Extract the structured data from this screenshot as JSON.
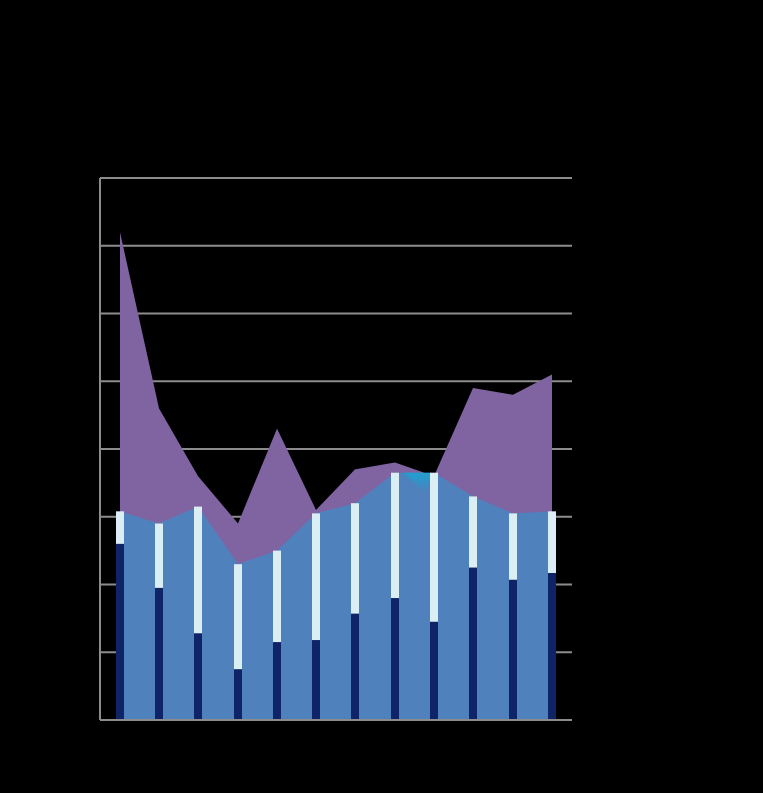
{
  "chart_data": {
    "type": "area",
    "title": "",
    "xlabel": "",
    "ylabel": "",
    "grid": true,
    "ylim": [
      0,
      8
    ],
    "x": [
      1,
      2,
      3,
      4,
      5,
      6,
      7,
      8,
      9,
      10,
      11,
      12
    ],
    "series": [
      {
        "type": "area",
        "values": [
          7.2,
          4.6,
          3.6,
          2.9,
          4.3,
          3.1,
          3.7,
          3.8,
          3.6,
          4.9,
          4.8,
          5.1
        ]
      },
      {
        "type": "area",
        "values": [
          3.08,
          2.9,
          3.15,
          2.3,
          2.5,
          3.05,
          3.2,
          3.65,
          3.65,
          3.3,
          3.05,
          3.08
        ]
      },
      {
        "type": "bar",
        "values": [
          3.08,
          2.9,
          3.15,
          2.3,
          2.5,
          3.05,
          3.2,
          3.65,
          3.65,
          3.3,
          3.05,
          3.08
        ]
      },
      {
        "type": "bar",
        "values": [
          2.6,
          1.95,
          1.28,
          0.75,
          1.15,
          1.18,
          1.57,
          1.8,
          1.45,
          2.25,
          2.07,
          2.17
        ]
      }
    ],
    "colors": {
      "background": "#000000",
      "grid": "#8c8c8c",
      "upper_area": "#8064a2",
      "lower_area": "#4f81bd",
      "bar_light": "#dbeef3",
      "bar_dark": "#0f2466",
      "highlight": "#1f9fd0"
    }
  }
}
